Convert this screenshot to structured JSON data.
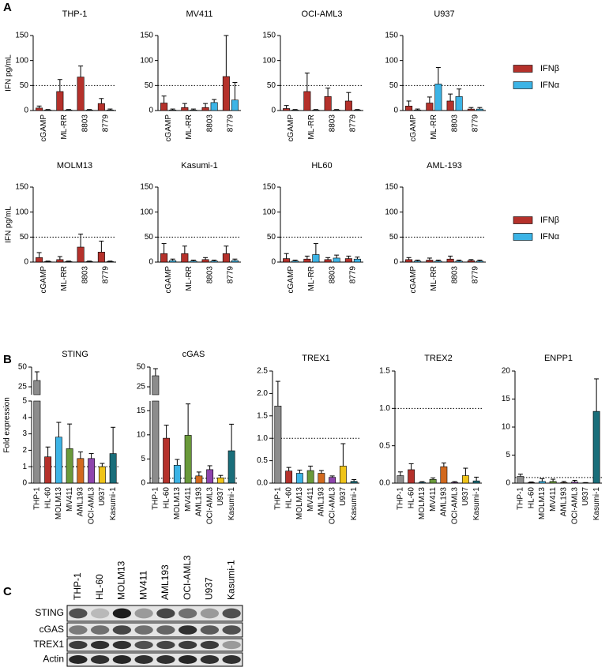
{
  "panels": [
    "A",
    "B",
    "C"
  ],
  "chart_data": [
    {
      "type": "bar",
      "title": "THP-1",
      "ylabel": "IFN pg/mL",
      "categories": [
        "cGAMP",
        "ML-RR",
        "8803",
        "8779"
      ],
      "ylim": [
        0,
        150
      ],
      "yticks": [
        0,
        50,
        100,
        150
      ],
      "reference_line": 50,
      "series": [
        {
          "color": "#b5312b",
          "values": [
            5,
            38,
            67,
            14
          ],
          "errors": [
            4,
            24,
            22,
            10
          ]
        },
        {
          "color": "#3cb4e6",
          "values": [
            1,
            1,
            1,
            1
          ],
          "errors": [
            1,
            1,
            1,
            2
          ]
        }
      ]
    },
    {
      "type": "bar",
      "title": "MV411",
      "categories": [
        "cGAMP",
        "ML-RR",
        "8803",
        "8779"
      ],
      "ylim": [
        0,
        150
      ],
      "yticks": [
        0,
        50,
        100,
        150
      ],
      "reference_line": 50,
      "series": [
        {
          "color": "#b5312b",
          "values": [
            15,
            6,
            6,
            68
          ],
          "errors": [
            14,
            8,
            8,
            82
          ]
        },
        {
          "color": "#3cb4e6",
          "values": [
            1,
            1,
            16,
            21
          ],
          "errors": [
            2,
            2,
            6,
            35
          ]
        }
      ]
    },
    {
      "type": "bar",
      "title": "OCI-AML3",
      "categories": [
        "cGAMP",
        "ML-RR",
        "8803",
        "8779"
      ],
      "ylim": [
        0,
        150
      ],
      "yticks": [
        0,
        50,
        100,
        150
      ],
      "reference_line": 50,
      "series": [
        {
          "color": "#b5312b",
          "values": [
            4,
            38,
            28,
            19
          ],
          "errors": [
            6,
            37,
            17,
            17
          ]
        },
        {
          "color": "#3cb4e6",
          "values": [
            1,
            1,
            1,
            1
          ],
          "errors": [
            1,
            1,
            1,
            1
          ]
        }
      ]
    },
    {
      "type": "bar",
      "title": "U937",
      "categories": [
        "cGAMP",
        "ML-RR",
        "8803",
        "8779"
      ],
      "ylim": [
        0,
        150
      ],
      "yticks": [
        0,
        50,
        100,
        150
      ],
      "reference_line": 50,
      "legend": "right",
      "series": [
        {
          "name": "IFNβ",
          "color": "#b5312b",
          "values": [
            9,
            15,
            19,
            3
          ],
          "errors": [
            10,
            12,
            14,
            3
          ]
        },
        {
          "name": "IFNα",
          "color": "#3cb4e6",
          "values": [
            1,
            53,
            28,
            3
          ],
          "errors": [
            2,
            33,
            15,
            3
          ]
        }
      ]
    },
    {
      "type": "bar",
      "title": "MOLM13",
      "ylabel": "IFN pg/mL",
      "categories": [
        "cGAMP",
        "ML-RR",
        "8803",
        "8779"
      ],
      "ylim": [
        0,
        150
      ],
      "yticks": [
        0,
        50,
        100,
        150
      ],
      "reference_line": 50,
      "series": [
        {
          "color": "#b5312b",
          "values": [
            9,
            5,
            30,
            20
          ],
          "errors": [
            10,
            6,
            26,
            22
          ]
        },
        {
          "color": "#3cb4e6",
          "values": [
            1,
            1,
            1,
            1
          ],
          "errors": [
            1,
            1,
            1,
            1
          ]
        }
      ]
    },
    {
      "type": "bar",
      "title": "Kasumi-1",
      "categories": [
        "cGAMP",
        "ML-RR",
        "8803",
        "8779"
      ],
      "ylim": [
        0,
        150
      ],
      "yticks": [
        0,
        50,
        100,
        150
      ],
      "reference_line": 50,
      "series": [
        {
          "color": "#b5312b",
          "values": [
            17,
            17,
            5,
            17
          ],
          "errors": [
            20,
            15,
            4,
            15
          ]
        },
        {
          "color": "#3cb4e6",
          "values": [
            3,
            2,
            2,
            3
          ],
          "errors": [
            3,
            2,
            2,
            3
          ]
        }
      ]
    },
    {
      "type": "bar",
      "title": "HL60",
      "categories": [
        "cGAMP",
        "ML-RR",
        "8803",
        "8779"
      ],
      "ylim": [
        0,
        150
      ],
      "yticks": [
        0,
        50,
        100,
        150
      ],
      "reference_line": 50,
      "series": [
        {
          "color": "#b5312b",
          "values": [
            7,
            6,
            5,
            7
          ],
          "errors": [
            10,
            6,
            4,
            5
          ]
        },
        {
          "color": "#3cb4e6",
          "values": [
            2,
            15,
            8,
            6
          ],
          "errors": [
            2,
            22,
            6,
            4
          ]
        }
      ]
    },
    {
      "type": "bar",
      "title": "AML-193",
      "categories": [
        "cGAMP",
        "ML-RR",
        "8803",
        "8779"
      ],
      "ylim": [
        0,
        150
      ],
      "yticks": [
        0,
        50,
        100,
        150
      ],
      "reference_line": 50,
      "legend": "right",
      "series": [
        {
          "name": "IFNβ",
          "color": "#b5312b",
          "values": [
            5,
            4,
            6,
            3
          ],
          "errors": [
            4,
            4,
            6,
            2
          ]
        },
        {
          "name": "IFNα",
          "color": "#3cb4e6",
          "values": [
            2,
            2,
            2,
            2
          ],
          "errors": [
            2,
            2,
            2,
            2
          ]
        }
      ]
    },
    {
      "type": "bar",
      "title": "STING",
      "ylabel": "Fold expression",
      "categories": [
        "THP-1",
        "HL-60",
        "MOLM13",
        "MV411",
        "AML193",
        "OCI-AML3",
        "U937",
        "Kasumi-1"
      ],
      "colors": [
        "#8c8c8c",
        "#b5312b",
        "#3cb4e6",
        "#6a9a3a",
        "#d2691e",
        "#8e44ad",
        "#f0c419",
        "#1a6e7a"
      ],
      "values": [
        33,
        1.6,
        2.8,
        2.1,
        1.5,
        1.5,
        1.0,
        1.8
      ],
      "errors": [
        11,
        0.6,
        0.9,
        1.5,
        0.4,
        0.3,
        0.2,
        1.6
      ],
      "ylim": [
        0,
        5
      ],
      "yticks": [
        0,
        1,
        2,
        3,
        4,
        5
      ],
      "break": {
        "ylim": [
          15,
          50
        ],
        "yticks": [
          25,
          50
        ]
      },
      "reference_line": 1
    },
    {
      "type": "bar",
      "title": "cGAS",
      "categories": [
        "THP-1",
        "HL-60",
        "MOLM13",
        "MV411",
        "AML193",
        "OCI-AML3",
        "U937",
        "Kasumi-1"
      ],
      "colors": [
        "#8c8c8c",
        "#b5312b",
        "#3cb4e6",
        "#6a9a3a",
        "#d2691e",
        "#8e44ad",
        "#f0c419",
        "#1a6e7a"
      ],
      "values": [
        39,
        9.3,
        3.7,
        9.9,
        1.5,
        2.8,
        1.1,
        6.7
      ],
      "errors": [
        9,
        2.7,
        1.2,
        6.5,
        0.8,
        0.8,
        0.5,
        5.5
      ],
      "ylim": [
        0,
        17
      ],
      "yticks": [
        0,
        5,
        10,
        15
      ],
      "break": {
        "ylim": [
          15,
          50
        ],
        "yticks": [
          25,
          50
        ]
      },
      "reference_line": 1
    },
    {
      "type": "bar",
      "title": "TREX1",
      "categories": [
        "THP-1",
        "HL-60",
        "MOLM13",
        "MV411",
        "AML193",
        "OCI-AML3",
        "U937",
        "Kasumi-1"
      ],
      "colors": [
        "#8c8c8c",
        "#b5312b",
        "#3cb4e6",
        "#6a9a3a",
        "#d2691e",
        "#8e44ad",
        "#f0c419",
        "#1a6e7a"
      ],
      "values": [
        1.72,
        0.27,
        0.22,
        0.28,
        0.22,
        0.13,
        0.38,
        0.04
      ],
      "errors": [
        0.55,
        0.08,
        0.07,
        0.1,
        0.06,
        0.03,
        0.5,
        0.04
      ],
      "ylim": [
        0,
        2.5
      ],
      "yticks": [
        {
          "value": 0,
          "label": "0.0"
        },
        0.5,
        {
          "value": 1,
          "label": "1.0"
        },
        1.5,
        {
          "value": 2,
          "label": "2.0"
        },
        2.5
      ],
      "reference_line": 1
    },
    {
      "type": "bar",
      "title": "TREX2",
      "categories": [
        "THP-1",
        "HL-60",
        "MOLM13",
        "MV411",
        "AML193",
        "OCI-AML3",
        "U937",
        "Kasumi-1"
      ],
      "colors": [
        "#8c8c8c",
        "#b5312b",
        "#3cb4e6",
        "#6a9a3a",
        "#d2691e",
        "#8e44ad",
        "#f0c419",
        "#1a6e7a"
      ],
      "values": [
        0.1,
        0.18,
        0.01,
        0.05,
        0.22,
        0.01,
        0.1,
        0.03
      ],
      "errors": [
        0.05,
        0.08,
        0.01,
        0.02,
        0.05,
        0.01,
        0.1,
        0.05
      ],
      "ylim": [
        0,
        1.5
      ],
      "yticks": [
        {
          "value": 0,
          "label": "0.0"
        },
        0.5,
        {
          "value": 1,
          "label": "1.0"
        },
        1.5
      ],
      "reference_line": 1
    },
    {
      "type": "bar",
      "title": "ENPP1",
      "categories": [
        "THP-1",
        "HL-60",
        "MOLM13",
        "MV411",
        "AML193",
        "OCI-AML3",
        "U937",
        "Kasumi-1"
      ],
      "colors": [
        "#8c8c8c",
        "#b5312b",
        "#3cb4e6",
        "#6a9a3a",
        "#d2691e",
        "#8e44ad",
        "#f0c419",
        "#1a6e7a"
      ],
      "values": [
        1.2,
        0.1,
        0.3,
        0.3,
        0.1,
        0.2,
        0.05,
        12.8
      ],
      "errors": [
        0.4,
        0.1,
        0.5,
        0.4,
        0.2,
        0.3,
        0.05,
        5.8
      ],
      "ylim": [
        0,
        20
      ],
      "yticks": [
        0,
        5,
        10,
        15,
        20
      ],
      "reference_line": 1
    }
  ],
  "blot": {
    "lanes": [
      "THP-1",
      "HL-60",
      "MOLM13",
      "MV411",
      "AML193",
      "OCI-AML3",
      "U937",
      "Kasumi-1"
    ],
    "rows": [
      "STING",
      "cGAS",
      "TREX1",
      "Actin"
    ]
  }
}
